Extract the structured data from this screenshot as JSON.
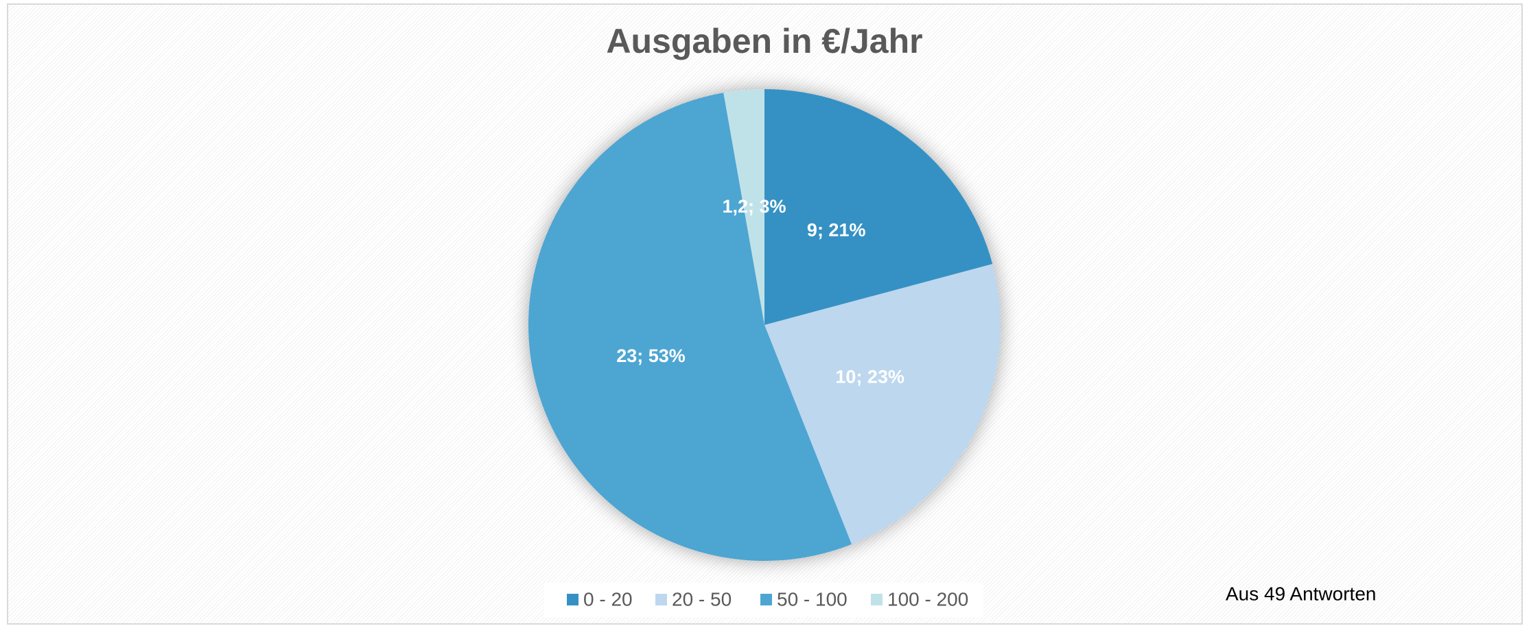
{
  "chart_data": {
    "type": "pie",
    "title": "Ausgaben in €/Jahr",
    "categories": [
      "0 - 20",
      "20 - 50",
      "50 - 100",
      "100 - 200"
    ],
    "values": [
      9,
      10,
      23,
      1.2
    ],
    "value_labels": [
      "9; 21%",
      "10; 23%",
      "23; 53%",
      "1,2; 3%"
    ],
    "colors": [
      "#3591c4",
      "#bdd7ee",
      "#4ea5d2",
      "#bfe2e8"
    ],
    "legend": "bottom",
    "annotation": "Aus 49 Antworten"
  }
}
